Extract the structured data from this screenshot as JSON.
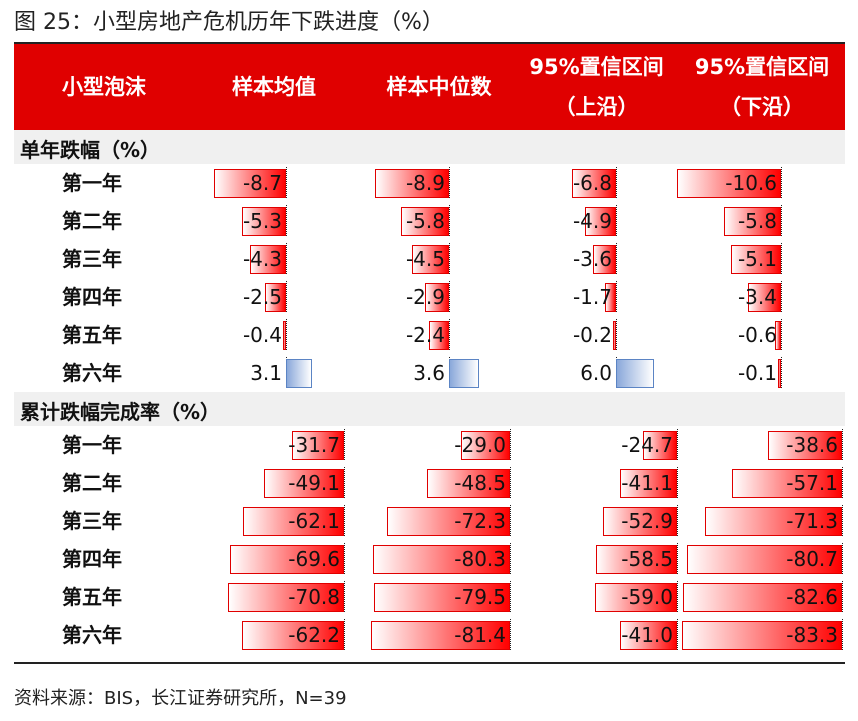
{
  "title": "图 25：小型房地产危机历年下跌进度（%）",
  "header": {
    "c0": "小型泡沫",
    "c1": "样本均值",
    "c2": "样本中位数",
    "c3a": "95%置信区间",
    "c3b": "（上沿）",
    "c4a": "95%置信区间",
    "c4b": "（下沿）"
  },
  "sections": [
    {
      "label": "单年跌幅（%）",
      "scale_max": 10.6,
      "rows": [
        {
          "label": "第一年",
          "values": [
            -8.7,
            -8.9,
            -6.8,
            -10.6
          ]
        },
        {
          "label": "第二年",
          "values": [
            -5.3,
            -5.8,
            -4.9,
            -5.8
          ]
        },
        {
          "label": "第三年",
          "values": [
            -4.3,
            -4.5,
            -3.6,
            -5.1
          ]
        },
        {
          "label": "第四年",
          "values": [
            -2.5,
            -2.9,
            -1.7,
            -3.4
          ]
        },
        {
          "label": "第五年",
          "values": [
            -0.4,
            -2.4,
            -0.2,
            -0.6
          ]
        },
        {
          "label": "第六年",
          "values": [
            3.1,
            3.6,
            6.0,
            -0.1
          ]
        }
      ]
    },
    {
      "label": "累计跌幅完成率（%）",
      "scale_max": 83.3,
      "rows": [
        {
          "label": "第一年",
          "values": [
            -31.7,
            -29.0,
            -24.7,
            -38.6
          ]
        },
        {
          "label": "第二年",
          "values": [
            -49.1,
            -48.5,
            -41.1,
            -57.1
          ]
        },
        {
          "label": "第三年",
          "values": [
            -62.1,
            -72.3,
            -52.9,
            -71.3
          ]
        },
        {
          "label": "第四年",
          "values": [
            -69.6,
            -80.3,
            -58.5,
            -80.7
          ]
        },
        {
          "label": "第五年",
          "values": [
            -70.8,
            -79.5,
            -59.0,
            -82.6
          ]
        },
        {
          "label": "第六年",
          "values": [
            -62.2,
            -81.4,
            -41.0,
            -83.3
          ]
        }
      ]
    }
  ],
  "source": "资料来源：BIS，长江证券研究所，N=39",
  "colors": {
    "header_bg": "#e00000",
    "neg_bar": "#ff0000",
    "pos_bar": "#8aa8da"
  }
}
